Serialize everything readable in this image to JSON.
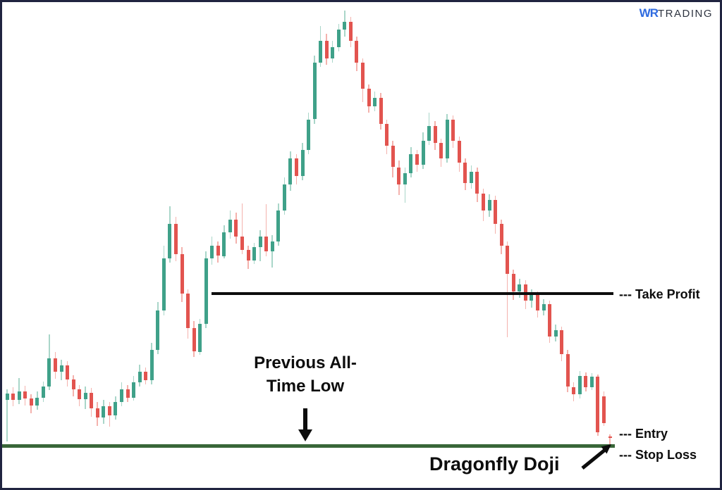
{
  "logo": {
    "mark": "WR",
    "word": "TRADING"
  },
  "labels": {
    "take_profit": "--- Take Profit",
    "entry": "--- Entry",
    "stop_loss": "--- Stop Loss",
    "prev_low_line1": "Previous All-",
    "prev_low_line2": "Time Low",
    "dragonfly": "Dragonfly Doji"
  },
  "colors": {
    "bull_body": "#3fa189",
    "bull_wick": "#a9d6c9",
    "bear_body": "#e2544f",
    "bear_wick": "#f4b2ad",
    "support_line": "#386638",
    "take_profit_line": "#0d0d0d",
    "annotation": "#0d0d0d",
    "logo_mark_blue": "#2f6be0",
    "logo_word_dark": "#2e3440",
    "frame_border": "#202440"
  },
  "chart_data": {
    "type": "candlestick",
    "title": "",
    "x_axis": {
      "visible": false
    },
    "y_axis": {
      "visible": false,
      "scale_note": "normalized price 0-100; 0 = previous all-time low support line, 100 = cycle peak"
    },
    "legend": {
      "visible": false
    },
    "grid": false,
    "annotations": {
      "take_profit_level": 35,
      "support_level": 0,
      "entry_level": 2.6,
      "stop_loss_level": -2.3,
      "support_label": "Previous All-Time Low",
      "dragonfly_doji_candle_index": 100
    },
    "candles": [
      [
        10.5,
        13,
        1,
        12
      ],
      [
        12,
        13.5,
        9,
        10.5
      ],
      [
        10.5,
        15.5,
        9.5,
        12.5
      ],
      [
        12.5,
        13.8,
        9.2,
        10.8
      ],
      [
        10.8,
        11.8,
        7.4,
        9.2
      ],
      [
        9.2,
        12.4,
        8.2,
        11
      ],
      [
        11,
        14.8,
        10,
        13.6
      ],
      [
        13.6,
        25.6,
        12.8,
        20
      ],
      [
        20,
        21.6,
        15.4,
        17
      ],
      [
        17,
        19.8,
        15,
        18.4
      ],
      [
        18.4,
        19.4,
        13.6,
        15.2
      ],
      [
        15.2,
        16.2,
        11.4,
        13
      ],
      [
        13,
        14,
        9,
        10.6
      ],
      [
        10.6,
        13.6,
        8.4,
        12.2
      ],
      [
        12.2,
        13.2,
        6.6,
        8.6
      ],
      [
        8.6,
        10,
        4.6,
        6.4
      ],
      [
        6.4,
        10.6,
        5,
        9
      ],
      [
        9,
        10,
        4.4,
        7
      ],
      [
        7,
        11.4,
        6,
        10
      ],
      [
        10,
        14.6,
        9,
        13
      ],
      [
        13,
        14,
        10,
        11
      ],
      [
        11,
        16,
        10.4,
        14.6
      ],
      [
        14.6,
        18.6,
        13.6,
        17
      ],
      [
        17,
        18,
        14,
        15
      ],
      [
        15,
        23.6,
        14,
        22
      ],
      [
        22,
        33,
        21,
        31
      ],
      [
        31,
        46,
        30,
        43
      ],
      [
        43,
        55,
        42,
        51
      ],
      [
        51,
        52.6,
        42.4,
        44
      ],
      [
        44,
        45.6,
        33,
        35
      ],
      [
        35,
        36,
        24.6,
        27
      ],
      [
        27,
        28.6,
        20.4,
        21.6
      ],
      [
        21.6,
        29.2,
        20.8,
        28
      ],
      [
        28,
        44.6,
        27,
        43
      ],
      [
        43,
        48,
        41.6,
        46
      ],
      [
        46,
        47,
        42,
        43.6
      ],
      [
        43.6,
        50.6,
        43,
        49
      ],
      [
        49,
        54,
        47.6,
        52
      ],
      [
        52,
        53.6,
        46.4,
        48
      ],
      [
        48,
        55.6,
        44,
        45
      ],
      [
        45,
        46,
        40.6,
        42.6
      ],
      [
        42.6,
        46.6,
        41.8,
        45.6
      ],
      [
        45.6,
        49.6,
        42.4,
        48
      ],
      [
        48,
        55.5,
        43.6,
        44.6
      ],
      [
        44.6,
        48.4,
        41,
        47
      ],
      [
        47,
        55.6,
        46,
        54
      ],
      [
        54,
        61.6,
        53,
        60
      ],
      [
        60,
        67.6,
        58.6,
        66
      ],
      [
        66,
        67,
        60,
        62
      ],
      [
        62,
        69.6,
        61,
        68
      ],
      [
        68,
        76.6,
        67,
        75
      ],
      [
        75,
        89.6,
        74,
        88
      ],
      [
        88,
        96.5,
        87,
        93
      ],
      [
        93,
        94.6,
        87.6,
        89
      ],
      [
        89,
        93,
        88,
        91.6
      ],
      [
        91.6,
        97,
        90.6,
        95.6
      ],
      [
        95.6,
        100,
        94,
        97.4
      ],
      [
        97.4,
        98.6,
        91.6,
        93
      ],
      [
        93,
        94,
        86,
        88
      ],
      [
        88,
        89,
        79,
        82
      ],
      [
        82,
        83,
        76.6,
        78
      ],
      [
        78,
        81.4,
        76.9,
        80
      ],
      [
        80,
        81,
        72.6,
        74
      ],
      [
        74,
        75,
        67,
        69
      ],
      [
        69,
        70,
        61.6,
        64
      ],
      [
        64,
        65.6,
        57.6,
        60
      ],
      [
        60,
        64,
        55.9,
        62.6
      ],
      [
        62.6,
        68.6,
        61.6,
        67
      ],
      [
        67,
        68,
        62.9,
        64.6
      ],
      [
        64.6,
        72,
        63.6,
        70
      ],
      [
        70,
        76.5,
        69,
        73.4
      ],
      [
        73.4,
        74.6,
        68,
        69.6
      ],
      [
        69.6,
        70.6,
        64,
        66
      ],
      [
        66,
        76.2,
        65,
        74.9
      ],
      [
        74.9,
        75.9,
        68.4,
        70
      ],
      [
        70,
        71,
        63,
        65
      ],
      [
        65,
        66,
        58.7,
        60.4
      ],
      [
        60.4,
        64.4,
        59,
        63
      ],
      [
        63,
        64,
        56,
        58
      ],
      [
        58,
        59,
        51.6,
        54
      ],
      [
        54,
        57.7,
        52.6,
        56.4
      ],
      [
        56.4,
        57.4,
        48.7,
        51
      ],
      [
        51,
        52,
        44,
        46
      ],
      [
        46,
        47,
        25,
        39.5
      ],
      [
        39.5,
        40.5,
        33.5,
        35.5
      ],
      [
        35.5,
        38.4,
        34,
        37
      ],
      [
        37,
        38,
        31.4,
        33.3
      ],
      [
        33.3,
        36,
        31.7,
        34.6
      ],
      [
        34.6,
        35.5,
        29.5,
        31
      ],
      [
        31,
        33.6,
        29.9,
        32.5
      ],
      [
        32.5,
        33.3,
        23.6,
        25
      ],
      [
        25,
        27.8,
        23.9,
        26.5
      ],
      [
        26.5,
        27.4,
        19.4,
        21
      ],
      [
        21,
        22,
        12.3,
        13.5
      ],
      [
        13.5,
        14.5,
        10.2,
        11.8
      ],
      [
        11.8,
        17.2,
        10.9,
        16
      ],
      [
        16,
        16.8,
        12.4,
        13.4
      ],
      [
        13.4,
        16.6,
        12.7,
        15.9
      ],
      [
        15.9,
        16.4,
        2.2,
        3
      ],
      [
        11.3,
        12.5,
        4.5,
        5.2
      ],
      [
        2.1,
        2.6,
        0.2,
        1.8
      ]
    ]
  }
}
